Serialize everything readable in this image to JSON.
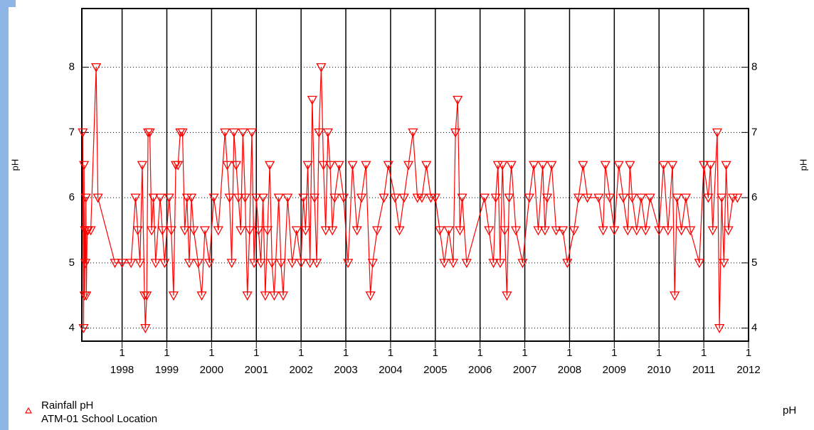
{
  "chart_data": {
    "type": "line",
    "y_label": "pH",
    "units_label": "pH",
    "legend_caption": "ATM-01 School Location",
    "xtick_month_label": "1",
    "xlim": [
      1997.1,
      2012.0
    ],
    "xticks": [
      1998,
      1999,
      2000,
      2001,
      2002,
      2003,
      2004,
      2005,
      2006,
      2007,
      2008,
      2009,
      2010,
      2011,
      2012
    ],
    "ylim": [
      3.8,
      8.9
    ],
    "yticks": [
      4,
      5,
      6,
      7,
      8
    ],
    "grid": true,
    "series": [
      {
        "name": "Rainfall pH",
        "color": "#ff0000",
        "x": [
          1997.12,
          1997.14,
          1997.15,
          1997.16,
          1997.17,
          1997.18,
          1997.19,
          1997.2,
          1997.22,
          1997.24,
          1997.3,
          1997.42,
          1997.46,
          1997.84,
          1998.0,
          1998.2,
          1998.3,
          1998.35,
          1998.4,
          1998.45,
          1998.5,
          1998.52,
          1998.55,
          1998.58,
          1998.62,
          1998.66,
          1998.7,
          1998.75,
          1998.85,
          1998.9,
          1998.95,
          1999.05,
          1999.1,
          1999.15,
          1999.2,
          1999.25,
          1999.3,
          1999.35,
          1999.4,
          1999.45,
          1999.5,
          1999.55,
          1999.6,
          1999.7,
          1999.78,
          1999.85,
          1999.95,
          2000.05,
          2000.15,
          2000.3,
          2000.35,
          2000.4,
          2000.45,
          2000.5,
          2000.55,
          2000.6,
          2000.65,
          2000.7,
          2000.75,
          2000.8,
          2000.85,
          2000.9,
          2000.95,
          2001.0,
          2001.05,
          2001.1,
          2001.15,
          2001.2,
          2001.25,
          2001.3,
          2001.35,
          2001.4,
          2001.5,
          2001.55,
          2001.6,
          2001.7,
          2001.8,
          2001.9,
          2002.0,
          2002.05,
          2002.1,
          2002.15,
          2002.2,
          2002.25,
          2002.3,
          2002.35,
          2002.4,
          2002.45,
          2002.5,
          2002.55,
          2002.6,
          2002.65,
          2002.7,
          2002.75,
          2002.85,
          2002.95,
          2003.05,
          2003.15,
          2003.25,
          2003.35,
          2003.45,
          2003.55,
          2003.6,
          2003.7,
          2003.85,
          2003.95,
          2004.1,
          2004.2,
          2004.3,
          2004.4,
          2004.5,
          2004.6,
          2004.7,
          2004.8,
          2004.9,
          2005.0,
          2005.1,
          2005.2,
          2005.3,
          2005.4,
          2005.45,
          2005.5,
          2005.55,
          2005.6,
          2005.7,
          2006.1,
          2006.2,
          2006.3,
          2006.35,
          2006.4,
          2006.45,
          2006.5,
          2006.55,
          2006.6,
          2006.65,
          2006.7,
          2006.8,
          2006.95,
          2007.1,
          2007.2,
          2007.3,
          2007.4,
          2007.45,
          2007.5,
          2007.6,
          2007.7,
          2007.85,
          2007.95,
          2008.1,
          2008.2,
          2008.3,
          2008.4,
          2008.65,
          2008.75,
          2008.8,
          2008.9,
          2009.0,
          2009.1,
          2009.2,
          2009.3,
          2009.35,
          2009.4,
          2009.5,
          2009.6,
          2009.7,
          2009.8,
          2010.0,
          2010.1,
          2010.2,
          2010.3,
          2010.35,
          2010.4,
          2010.5,
          2010.6,
          2010.7,
          2010.9,
          2011.0,
          2011.1,
          2011.15,
          2011.2,
          2011.3,
          2011.35,
          2011.4,
          2011.45,
          2011.5,
          2011.55,
          2011.65,
          2011.75
        ],
        "values": [
          7.0,
          4.0,
          6.5,
          4.5,
          5.5,
          5.0,
          6.0,
          4.5,
          5.5,
          5.5,
          5.5,
          8.0,
          6.0,
          5.0,
          5.0,
          5.0,
          6.0,
          5.5,
          5.0,
          6.5,
          4.5,
          4.0,
          4.5,
          7.0,
          7.0,
          5.5,
          6.0,
          5.0,
          6.0,
          5.5,
          5.0,
          6.0,
          5.5,
          4.5,
          6.5,
          6.5,
          7.0,
          7.0,
          5.5,
          6.0,
          5.0,
          6.0,
          5.5,
          5.0,
          4.5,
          5.5,
          5.0,
          6.0,
          5.5,
          7.0,
          6.5,
          6.0,
          5.0,
          7.0,
          6.5,
          6.0,
          5.5,
          7.0,
          6.0,
          4.5,
          5.5,
          7.0,
          5.0,
          6.0,
          5.5,
          5.0,
          6.0,
          4.5,
          5.5,
          6.5,
          5.0,
          4.5,
          6.0,
          5.0,
          4.5,
          6.0,
          5.0,
          5.5,
          5.0,
          6.0,
          5.5,
          6.5,
          5.0,
          7.5,
          6.0,
          5.0,
          7.0,
          8.0,
          6.5,
          5.5,
          7.0,
          6.5,
          5.5,
          6.0,
          6.5,
          6.0,
          5.0,
          6.5,
          5.5,
          6.0,
          6.5,
          4.5,
          5.0,
          5.5,
          6.0,
          6.5,
          6.0,
          5.5,
          6.0,
          6.5,
          7.0,
          6.0,
          6.0,
          6.5,
          6.0,
          6.0,
          5.5,
          5.0,
          5.5,
          5.0,
          7.0,
          7.5,
          5.5,
          6.0,
          5.0,
          6.0,
          5.5,
          5.0,
          6.0,
          6.5,
          5.0,
          6.5,
          5.5,
          4.5,
          6.0,
          6.5,
          5.5,
          5.0,
          6.0,
          6.5,
          5.5,
          6.5,
          5.5,
          6.0,
          6.5,
          5.5,
          5.5,
          5.0,
          5.5,
          6.0,
          6.5,
          6.0,
          6.0,
          5.5,
          6.5,
          6.0,
          5.5,
          6.5,
          6.0,
          5.5,
          6.5,
          6.0,
          5.5,
          6.0,
          5.5,
          6.0,
          5.5,
          6.5,
          5.5,
          6.5,
          4.5,
          6.0,
          5.5,
          6.0,
          5.5,
          5.0,
          6.5,
          6.0,
          6.5,
          5.5,
          7.0,
          4.0,
          6.0,
          5.0,
          6.5,
          5.5,
          6.0,
          6.0
        ]
      }
    ]
  }
}
